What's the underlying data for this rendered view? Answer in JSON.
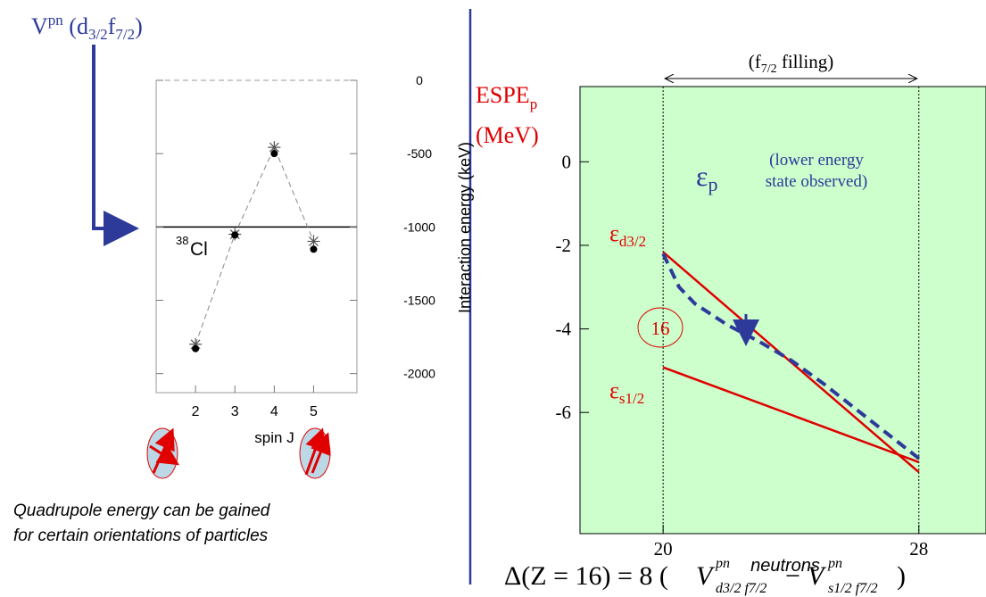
{
  "heading": {
    "base": "V",
    "sup": "pn",
    "open": " (d",
    "sub1": "3/2",
    "mid": "f",
    "sub2": "7/2",
    "close": ")"
  },
  "caption": [
    "Quadrupole energy can be gained",
    "for certain orientations of particles"
  ],
  "formula": {
    "lhs": "Δ(Z = 16) = 8 (",
    "v1": "V",
    "sup1": "pn",
    "sub1": "d3/2 f7/2",
    "minus": "−",
    "v2": "V",
    "sup2": "pn",
    "sub2": "s1/2 f7/2",
    "close": ")"
  },
  "chart_data": [
    {
      "type": "scatter",
      "xlabel": "spin J",
      "ylabel": "Interaction energy (keV)",
      "annotation_sup": "38",
      "annotation": "Cl",
      "x": [
        2,
        3,
        4,
        5
      ],
      "xlim": [
        1,
        6.1
      ],
      "xticks": [
        2,
        3,
        4,
        5
      ],
      "ylim": [
        -2130,
        0
      ],
      "yticks": [
        0,
        -500,
        -1000,
        -1500,
        -2000
      ],
      "hline": -1000,
      "series": [
        {
          "marker": "star",
          "color": "#555555",
          "values": [
            -1800,
            -1050,
            -457,
            -1098
          ]
        },
        {
          "marker": "dot",
          "color": "#000000",
          "values": [
            -1830,
            -1055,
            -500,
            -1152
          ]
        }
      ]
    },
    {
      "type": "line",
      "ylabel": {
        "base": "ESPE",
        "sub": "p",
        "unit": "(MeV)"
      },
      "xlabel": "neutrons",
      "xlim": [
        17.4,
        30.1
      ],
      "xticks": [
        20,
        28
      ],
      "ylim": [
        -8.9,
        1.8
      ],
      "yticks": [
        0,
        -2,
        -4,
        -6
      ],
      "vlines": [
        20,
        28
      ],
      "background": "#ccffcc",
      "filling": {
        "open": "(f",
        "sub": "7/2",
        "close": " filling)"
      },
      "circled": "16",
      "series": [
        {
          "label": {
            "symbol": "ε",
            "sub": "d3/2"
          },
          "color": "#e00000",
          "x": [
            20,
            28
          ],
          "values": [
            -2.16,
            -7.43
          ]
        },
        {
          "label": {
            "symbol": "ε",
            "sub": "s1/2"
          },
          "color": "#e00000",
          "x": [
            20,
            28
          ],
          "values": [
            -4.92,
            -7.19
          ]
        },
        {
          "label": {
            "symbol": "ε",
            "sub": "p",
            "note": [
              "(lower energy",
              "state observed)"
            ]
          },
          "color": "#2e3a9a",
          "dashed": true,
          "x": [
            20,
            20.5,
            21,
            22,
            23,
            24,
            25,
            26,
            27,
            28
          ],
          "values": [
            -2.2,
            -3.0,
            -3.4,
            -3.9,
            -4.3,
            -4.75,
            -5.3,
            -5.9,
            -6.5,
            -7.1
          ]
        }
      ]
    }
  ]
}
